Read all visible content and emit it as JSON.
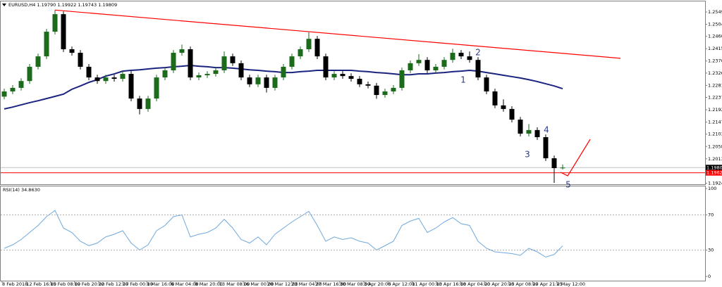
{
  "chart_data": {
    "type": "candlestick",
    "title": "EURUSD,H4  1.19790 1.19922 1.19743 1.19809",
    "open": [
      1.224,
      1.2259,
      1.2272,
      1.2297,
      1.2349,
      1.2387,
      1.2477,
      1.2541,
      1.2413,
      1.24,
      1.2349,
      1.231,
      1.2297,
      1.231,
      1.2305,
      1.2323,
      1.2233,
      1.2195,
      1.2233,
      1.231,
      1.2336,
      1.24,
      1.2413,
      1.231,
      1.2318,
      1.2323,
      1.2336,
      1.2387,
      1.2362,
      1.231,
      1.2285,
      1.231,
      1.2272,
      1.231,
      1.2349,
      1.2387,
      1.2413,
      1.2451,
      1.2387,
      1.231,
      1.2323,
      1.2315,
      1.2305,
      1.2285,
      1.228,
      1.2246,
      1.2259,
      1.2272,
      1.2336,
      1.2362,
      1.2374,
      1.2336,
      1.2349,
      1.2374,
      1.24,
      1.2387,
      1.2374,
      1.231,
      1.2259,
      1.2208,
      1.2195,
      1.2156,
      1.2105,
      1.2118,
      1.2092,
      1.2015,
      1.1979
    ],
    "high": [
      1.2269,
      1.2282,
      1.2307,
      1.2359,
      1.2397,
      1.2487,
      1.2556,
      1.2551,
      1.2423,
      1.241,
      1.2359,
      1.232,
      1.232,
      1.232,
      1.2333,
      1.2333,
      1.2243,
      1.2243,
      1.232,
      1.2346,
      1.241,
      1.243,
      1.2423,
      1.2328,
      1.2333,
      1.2346,
      1.2405,
      1.2397,
      1.2372,
      1.232,
      1.232,
      1.232,
      1.232,
      1.2359,
      1.2397,
      1.2423,
      1.2475,
      1.2461,
      1.2397,
      1.2333,
      1.2333,
      1.2325,
      1.2315,
      1.2295,
      1.229,
      1.2269,
      1.2282,
      1.2346,
      1.2372,
      1.2395,
      1.2384,
      1.2359,
      1.2384,
      1.2415,
      1.241,
      1.2405,
      1.2384,
      1.232,
      1.2269,
      1.223,
      1.2205,
      1.2166,
      1.214,
      1.2128,
      1.2102,
      1.2025,
      1.19922
    ],
    "low": [
      1.223,
      1.2249,
      1.2262,
      1.2287,
      1.2339,
      1.2377,
      1.2467,
      1.2403,
      1.239,
      1.2339,
      1.23,
      1.2287,
      1.2287,
      1.2295,
      1.2295,
      1.2223,
      1.2175,
      1.2185,
      1.2223,
      1.23,
      1.2326,
      1.239,
      1.23,
      1.23,
      1.2308,
      1.2313,
      1.2326,
      1.2352,
      1.23,
      1.2275,
      1.2275,
      1.2255,
      1.2262,
      1.23,
      1.2339,
      1.2377,
      1.2403,
      1.2377,
      1.23,
      1.23,
      1.2305,
      1.2295,
      1.2275,
      1.227,
      1.2232,
      1.2236,
      1.2249,
      1.2262,
      1.2326,
      1.2352,
      1.2326,
      1.2326,
      1.2339,
      1.2364,
      1.2377,
      1.2364,
      1.23,
      1.2249,
      1.2198,
      1.2185,
      1.2146,
      1.2095,
      1.2095,
      1.2082,
      1.2005,
      1.1925,
      1.19743
    ],
    "close": [
      1.2259,
      1.2272,
      1.2297,
      1.2349,
      1.2387,
      1.2477,
      1.2541,
      1.2413,
      1.24,
      1.2349,
      1.231,
      1.2297,
      1.231,
      1.2305,
      1.2323,
      1.2233,
      1.2195,
      1.2233,
      1.231,
      1.2336,
      1.24,
      1.2413,
      1.231,
      1.2318,
      1.2323,
      1.2336,
      1.2387,
      1.2362,
      1.231,
      1.2285,
      1.231,
      1.2272,
      1.231,
      1.2349,
      1.2387,
      1.2413,
      1.2451,
      1.2387,
      1.231,
      1.2323,
      1.2315,
      1.2305,
      1.2285,
      1.228,
      1.2246,
      1.2259,
      1.2272,
      1.2336,
      1.2362,
      1.2374,
      1.2336,
      1.2349,
      1.2374,
      1.24,
      1.2387,
      1.2374,
      1.231,
      1.2259,
      1.2208,
      1.2195,
      1.2156,
      1.2105,
      1.2118,
      1.2092,
      1.2015,
      1.1979,
      1.19809
    ],
    "bull_color": "#1b6b1b",
    "bear_color": "#000000",
    "ma": {
      "color": "#1a237e",
      "values": [
        1.2195,
        1.2202,
        1.221,
        1.2218,
        1.2225,
        1.2233,
        1.2241,
        1.2249,
        1.2267,
        1.2279,
        1.2292,
        1.2302,
        1.2315,
        1.2323,
        1.2333,
        1.2336,
        1.2338,
        1.2341,
        1.2344,
        1.2346,
        1.2349,
        1.2351,
        1.2354,
        1.2351,
        1.2349,
        1.2346,
        1.2346,
        1.2344,
        1.2341,
        1.2338,
        1.2336,
        1.2333,
        1.2331,
        1.2328,
        1.2328,
        1.2331,
        1.2333,
        1.2336,
        1.2336,
        1.2336,
        1.2336,
        1.2336,
        1.2333,
        1.2331,
        1.2328,
        1.2326,
        1.2323,
        1.232,
        1.232,
        1.2323,
        1.2323,
        1.2326,
        1.2328,
        1.2331,
        1.2333,
        1.2336,
        1.2333,
        1.2328,
        1.2323,
        1.2318,
        1.2313,
        1.2308,
        1.2302,
        1.2295,
        1.2287,
        1.2279,
        1.2269
      ]
    },
    "trendline": {
      "color": "#ff0000",
      "x": [
        6,
        72.83
      ],
      "y": [
        1.2556,
        1.238
      ]
    },
    "projection": {
      "color": "#ff0000",
      "x": [
        65.75,
        66.6,
        69.25
      ],
      "y": [
        1.1964,
        1.1951,
        1.2084
      ]
    },
    "levels": [
      {
        "value": 1.19809,
        "label": "1.19809",
        "color": "#c0c0c0",
        "tag": "#000000"
      },
      {
        "value": 1.19621,
        "label": "1.19621",
        "color": "#ff0000",
        "tag": "#ff0000"
      }
    ],
    "waves": [
      "1",
      "2",
      "3",
      "4",
      "5"
    ],
    "ylim": [
      1.192,
      1.2585
    ],
    "yticks": [
      {
        "value": 1.2549,
        "label": "1.25490"
      },
      {
        "value": 1.2504,
        "label": "1.25040"
      },
      {
        "value": 1.246,
        "label": "1.24600"
      },
      {
        "value": 1.2415,
        "label": "1.24150"
      },
      {
        "value": 1.237,
        "label": "1.23700"
      },
      {
        "value": 1.2326,
        "label": "1.23260"
      },
      {
        "value": 1.2281,
        "label": "1.22810"
      },
      {
        "value": 1.2237,
        "label": "1.22370"
      },
      {
        "value": 1.2192,
        "label": "1.21920"
      },
      {
        "value": 1.2147,
        "label": "1.21470"
      },
      {
        "value": 1.2103,
        "label": "1.21030"
      },
      {
        "value": 1.2058,
        "label": "1.20580"
      },
      {
        "value": 1.2013,
        "label": "1.20130"
      },
      {
        "value": 1.1924,
        "label": "1.19240"
      }
    ],
    "xticks": [
      "8 Feb 2018",
      "12 Feb 16:00",
      "15 Feb 08:00",
      "19 Feb 20:00",
      "22 Feb 12:00",
      "27 Feb 00:00",
      "1 Mar 16:00",
      "6 Mar 04:00",
      "8 Mar 20:00",
      "13 Mar 08:00",
      "16 Mar 00:00",
      "20 Mar 12:00",
      "23 Mar 04:00",
      "27 Mar 16:00",
      "30 Mar 08:00",
      "3 Apr 20:00",
      "6 Apr 12:00",
      "11 Apr 00:00",
      "13 Apr 16:00",
      "18 Apr 04:00",
      "20 Apr 20:00",
      "25 Apr 08:00",
      "29 Apr 21:05",
      "2 May 12:00"
    ],
    "indicator": {
      "label": "RSI(14) 34.8630",
      "color": "#6fa8dc",
      "values": [
        32,
        36,
        42,
        50,
        58,
        68,
        75,
        55,
        50,
        40,
        35,
        38,
        45,
        48,
        52,
        38,
        30,
        36,
        52,
        58,
        68,
        70,
        45,
        48,
        50,
        55,
        65,
        55,
        42,
        38,
        45,
        36,
        48,
        55,
        62,
        68,
        74,
        58,
        40,
        45,
        42,
        44,
        40,
        38,
        30,
        35,
        40,
        58,
        63,
        66,
        50,
        55,
        62,
        67,
        60,
        58,
        40,
        32,
        28,
        27,
        26,
        24,
        32,
        28,
        22,
        25,
        34.863
      ],
      "ylim": [
        0,
        100
      ],
      "yticks": [
        100,
        70,
        30,
        0
      ]
    }
  }
}
